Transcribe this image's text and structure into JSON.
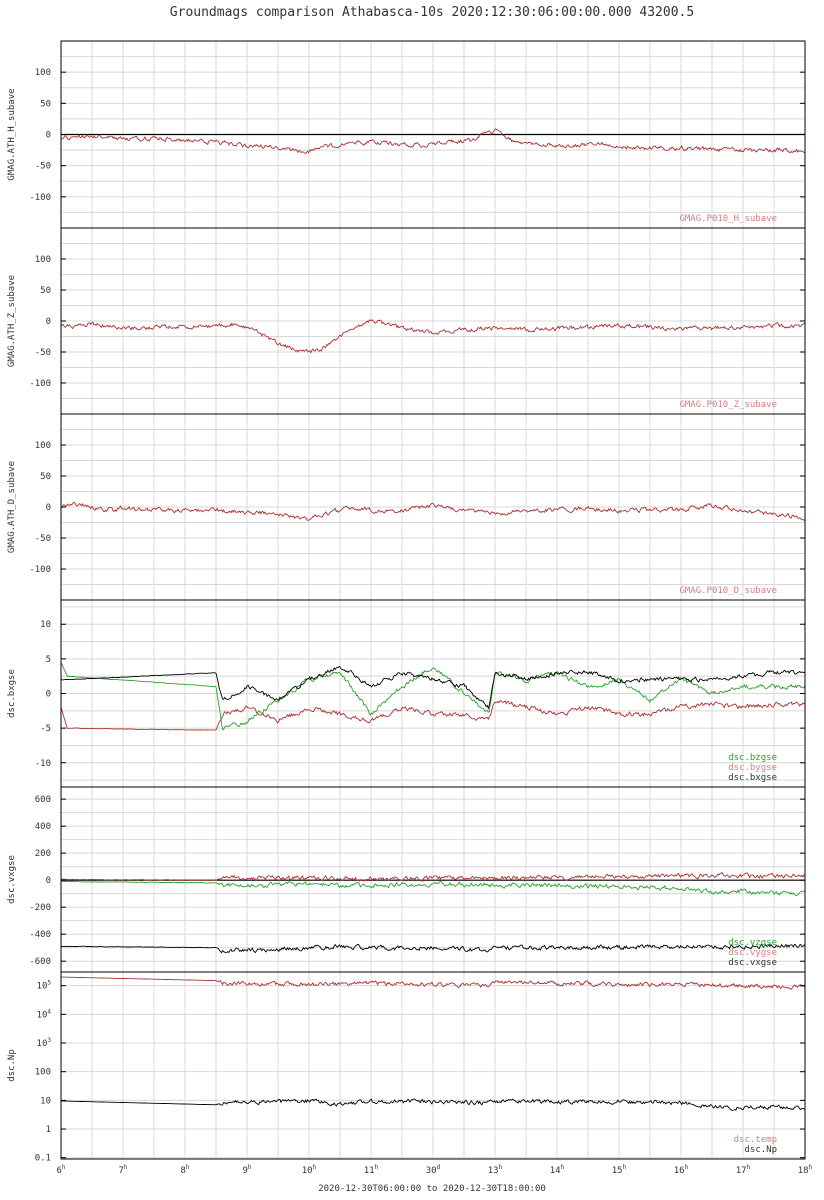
{
  "title": "Groundmags comparison Athabasca-10s 2020:12:30:06:00:00.000 43200.5",
  "footer": "2020-12-30T06:00:00 to 2020-12-30T18:00:00",
  "colors": {
    "black": "#000000",
    "red": "#a83232",
    "green": "#2ca02c",
    "legend_red": "#d08080",
    "grid": "#d8d8d8"
  },
  "chart_data": {
    "type": "line",
    "x_ticks": [
      {
        "main": "6",
        "sup": "h"
      },
      {
        "main": "7",
        "sup": "h"
      },
      {
        "main": "8",
        "sup": "h"
      },
      {
        "main": "9",
        "sup": "h"
      },
      {
        "main": "10",
        "sup": "h"
      },
      {
        "main": "11",
        "sup": "h"
      },
      {
        "main": "30",
        "sup": "d"
      },
      {
        "main": "13",
        "sup": "h"
      },
      {
        "main": "14",
        "sup": "h"
      },
      {
        "main": "15",
        "sup": "h"
      },
      {
        "main": "16",
        "sup": "h"
      },
      {
        "main": "17",
        "sup": "h"
      },
      {
        "main": "18",
        "sup": "h"
      }
    ],
    "xlim": [
      6,
      18
    ],
    "panels": [
      {
        "ylabel": "GMAG.ATH_H_subave",
        "scale": "linear",
        "ylim": [
          -150,
          150
        ],
        "yticks": [
          {
            "v": 100,
            "label": "100"
          },
          {
            "v": 50,
            "label": "50"
          },
          {
            "v": 0,
            "label": "0"
          },
          {
            "v": -50,
            "label": "-50"
          },
          {
            "v": -100,
            "label": "-100"
          }
        ],
        "zero_line": 0,
        "legend": [
          {
            "text": "GMAG.P010_H_subave",
            "color": "#d08080"
          }
        ],
        "series": [
          {
            "color": "#a83232",
            "x": [
              6.0,
              6.5,
              7.0,
              7.5,
              8.0,
              8.5,
              9.0,
              9.5,
              9.9,
              10.3,
              10.8,
              11.3,
              11.8,
              12.2,
              12.6,
              13.0,
              13.3,
              13.7,
              14.2,
              14.7,
              15.2,
              15.7,
              16.2,
              16.7,
              17.2,
              17.7,
              18.0
            ],
            "y": [
              -5,
              -3,
              -8,
              -6,
              -10,
              -12,
              -18,
              -20,
              -28,
              -20,
              -12,
              -15,
              -18,
              -12,
              -10,
              8,
              -12,
              -15,
              -18,
              -16,
              -20,
              -22,
              -22,
              -25,
              -26,
              -25,
              -28
            ]
          }
        ]
      },
      {
        "ylabel": "GMAG.ATH_Z_subave",
        "scale": "linear",
        "ylim": [
          -150,
          150
        ],
        "yticks": [
          {
            "v": 100,
            "label": "100"
          },
          {
            "v": 50,
            "label": "50"
          },
          {
            "v": 0,
            "label": "0"
          },
          {
            "v": -50,
            "label": "-50"
          },
          {
            "v": -100,
            "label": "-100"
          }
        ],
        "legend": [
          {
            "text": "GMAG.P010_Z_subave",
            "color": "#d08080"
          }
        ],
        "series": [
          {
            "color": "#a83232",
            "x": [
              6.0,
              6.5,
              7.0,
              7.5,
              8.0,
              8.5,
              8.8,
              9.2,
              9.6,
              9.9,
              10.2,
              10.6,
              11.0,
              11.5,
              12.0,
              12.5,
              13.0,
              13.5,
              14.0,
              14.5,
              15.0,
              15.5,
              16.0,
              16.5,
              17.0,
              17.5,
              18.0
            ],
            "y": [
              -10,
              -5,
              -12,
              -10,
              -8,
              -8,
              -5,
              -20,
              -40,
              -52,
              -45,
              -20,
              0,
              -12,
              -18,
              -15,
              -10,
              -15,
              -12,
              -10,
              -8,
              -10,
              -12,
              -12,
              -10,
              -8,
              -8
            ]
          }
        ]
      },
      {
        "ylabel": "GMAG.ATH_D_subave",
        "scale": "linear",
        "ylim": [
          -150,
          150
        ],
        "yticks": [
          {
            "v": 100,
            "label": "100"
          },
          {
            "v": 50,
            "label": "50"
          },
          {
            "v": 0,
            "label": "0"
          },
          {
            "v": -50,
            "label": "-50"
          },
          {
            "v": -100,
            "label": "-100"
          }
        ],
        "legend": [
          {
            "text": "GMAG.P010_D_subave",
            "color": "#d08080"
          }
        ],
        "series": [
          {
            "color": "#a83232",
            "x": [
              6.0,
              6.3,
              6.7,
              7.0,
              7.5,
              8.0,
              8.5,
              9.0,
              9.5,
              9.9,
              10.3,
              10.7,
              11.2,
              11.7,
              12.0,
              12.5,
              13.0,
              13.5,
              14.0,
              14.5,
              15.0,
              15.5,
              16.0,
              16.5,
              17.0,
              17.5,
              18.0
            ],
            "y": [
              2,
              5,
              -5,
              -2,
              -5,
              -5,
              -5,
              -8,
              -12,
              -20,
              -10,
              -2,
              -8,
              -2,
              2,
              -5,
              -10,
              -5,
              -5,
              -2,
              -5,
              -5,
              -5,
              2,
              -5,
              -10,
              -18
            ]
          }
        ]
      },
      {
        "ylabel": "dsc.bxgse",
        "scale": "linear",
        "ylim": [
          -13.5,
          13.5
        ],
        "yticks": [
          {
            "v": 10,
            "label": "10"
          },
          {
            "v": 5,
            "label": "5"
          },
          {
            "v": 0,
            "label": "0"
          },
          {
            "v": -5,
            "label": "-5"
          },
          {
            "v": -10,
            "label": "-10"
          }
        ],
        "legend": [
          {
            "text": "dsc.bzgse",
            "color": "#2ca02c"
          },
          {
            "text": "dsc.bygse",
            "color": "#d08080"
          },
          {
            "text": "dsc.bxgse",
            "color": "#333333"
          }
        ],
        "series": [
          {
            "color": "#2ca02c",
            "x": [
              6.0,
              6.1,
              8.5,
              8.6,
              9.0,
              9.5,
              10.0,
              10.5,
              11.0,
              11.5,
              12.0,
              12.5,
              12.9,
              13.0,
              13.5,
              14.0,
              14.5,
              15.0,
              15.5,
              16.0,
              16.5,
              17.0,
              17.5,
              18.0
            ],
            "y": [
              4.5,
              2.5,
              1.0,
              -5,
              -4,
              -1,
              2,
              3,
              -3,
              1,
              4,
              0,
              -3,
              3,
              2,
              3,
              1,
              2,
              -1,
              2,
              0,
              1,
              1,
              1
            ]
          },
          {
            "color": "#000000",
            "x": [
              6.0,
              6.1,
              8.5,
              8.6,
              9.0,
              9.5,
              10.0,
              10.5,
              11.0,
              11.5,
              12.0,
              12.5,
              12.9,
              13.0,
              13.5,
              14.0,
              14.5,
              15.0,
              15.5,
              16.0,
              16.5,
              17.0,
              17.5,
              18.0
            ],
            "y": [
              2.0,
              2.0,
              3.0,
              -1,
              1,
              -1,
              2,
              4,
              1,
              3,
              2,
              1,
              -2,
              3,
              2,
              3,
              3,
              2,
              2,
              2,
              2,
              2.5,
              3,
              3
            ]
          },
          {
            "color": "#a83232",
            "x": [
              6.0,
              6.1,
              8.5,
              8.6,
              9.0,
              9.5,
              10.0,
              10.5,
              11.0,
              11.5,
              12.0,
              12.5,
              12.9,
              13.0,
              13.5,
              14.0,
              14.5,
              15.0,
              15.5,
              16.0,
              16.5,
              17.0,
              17.5,
              18.0
            ],
            "y": [
              -2.0,
              -5.0,
              -5.3,
              -3,
              -2,
              -4,
              -2,
              -3,
              -4,
              -2,
              -3,
              -3,
              -4,
              -1,
              -2,
              -3,
              -2,
              -3,
              -3,
              -2,
              -1.5,
              -2,
              -1.5,
              -1.5
            ]
          }
        ]
      },
      {
        "ylabel": "dsc.vxgse",
        "scale": "linear",
        "ylim": [
          -680,
          690
        ],
        "yticks": [
          {
            "v": 600,
            "label": "600"
          },
          {
            "v": 400,
            "label": "400"
          },
          {
            "v": 200,
            "label": "200"
          },
          {
            "v": 0,
            "label": "0"
          },
          {
            "v": -200,
            "label": "-200"
          },
          {
            "v": -400,
            "label": "-400"
          },
          {
            "v": -600,
            "label": "-600"
          }
        ],
        "zero_line": 0,
        "legend": [
          {
            "text": "dsc.vzgse",
            "color": "#2ca02c"
          },
          {
            "text": "dsc.vygse",
            "color": "#d08080"
          },
          {
            "text": "dsc.vxgse",
            "color": "#333333"
          }
        ],
        "series": [
          {
            "color": "#000000",
            "x": [
              6.0,
              8.5,
              8.6,
              9.5,
              10.0,
              10.5,
              11.0,
              12.0,
              12.9,
              13.0,
              14.0,
              15.0,
              16.0,
              16.5,
              17.0,
              17.5,
              18.0
            ],
            "y": [
              -490,
              -500,
              -520,
              -510,
              -505,
              -490,
              -500,
              -500,
              -520,
              -500,
              -500,
              -495,
              -490,
              -495,
              -490,
              -485,
              -485
            ]
          },
          {
            "color": "#a83232",
            "x": [
              6.0,
              8.5,
              8.6,
              10.0,
              11.0,
              12.0,
              13.0,
              14.0,
              15.0,
              16.0,
              16.5,
              17.0,
              17.5,
              18.0
            ],
            "y": [
              5,
              0,
              20,
              15,
              10,
              15,
              15,
              20,
              25,
              30,
              35,
              30,
              35,
              35
            ]
          },
          {
            "color": "#2ca02c",
            "x": [
              6.0,
              8.5,
              8.6,
              9.5,
              10.0,
              10.5,
              11.0,
              12.0,
              13.0,
              14.0,
              15.0,
              16.0,
              16.5,
              17.0,
              17.5,
              18.0
            ],
            "y": [
              -10,
              -20,
              -40,
              -35,
              -30,
              -40,
              -35,
              -30,
              -35,
              -40,
              -50,
              -60,
              -90,
              -80,
              -100,
              -90
            ]
          }
        ]
      },
      {
        "ylabel": "dsc.Np",
        "scale": "log",
        "ylim": [
          0.09,
          300000
        ],
        "yticks": [
          {
            "v": 100000,
            "label": "10",
            "sup": "5"
          },
          {
            "v": 10000,
            "label": "10",
            "sup": "4"
          },
          {
            "v": 1000,
            "label": "10",
            "sup": "3"
          },
          {
            "v": 100,
            "label": "100"
          },
          {
            "v": 10,
            "label": "10"
          },
          {
            "v": 1,
            "label": "1"
          },
          {
            "v": 0.1,
            "label": "0.1"
          }
        ],
        "legend": [
          {
            "text": "dsc.temp",
            "color": "#d08080"
          },
          {
            "text": "dsc.Np",
            "color": "#333333"
          }
        ],
        "series": [
          {
            "color": "#a83232",
            "x": [
              6.0,
              8.5,
              8.6,
              10.0,
              11.0,
              12.0,
              12.9,
              13.0,
              14.0,
              15.0,
              16.0,
              17.0,
              17.5,
              18.0
            ],
            "y": [
              200000,
              150000,
              120000,
              110000,
              120000,
              110000,
              100000,
              130000,
              120000,
              110000,
              110000,
              100000,
              90000,
              90000
            ]
          },
          {
            "color": "#000000",
            "x": [
              6.0,
              8.5,
              8.6,
              9.5,
              10.0,
              10.5,
              11.0,
              12.0,
              12.9,
              13.0,
              14.0,
              15.0,
              16.0,
              16.5,
              17.0,
              17.5,
              18.0
            ],
            "y": [
              9.5,
              7.0,
              8.5,
              9.0,
              9.5,
              7.5,
              9.0,
              9.0,
              8.0,
              9.5,
              9.0,
              9.0,
              8.0,
              6.0,
              5.5,
              6.0,
              5.5
            ]
          }
        ]
      }
    ]
  }
}
